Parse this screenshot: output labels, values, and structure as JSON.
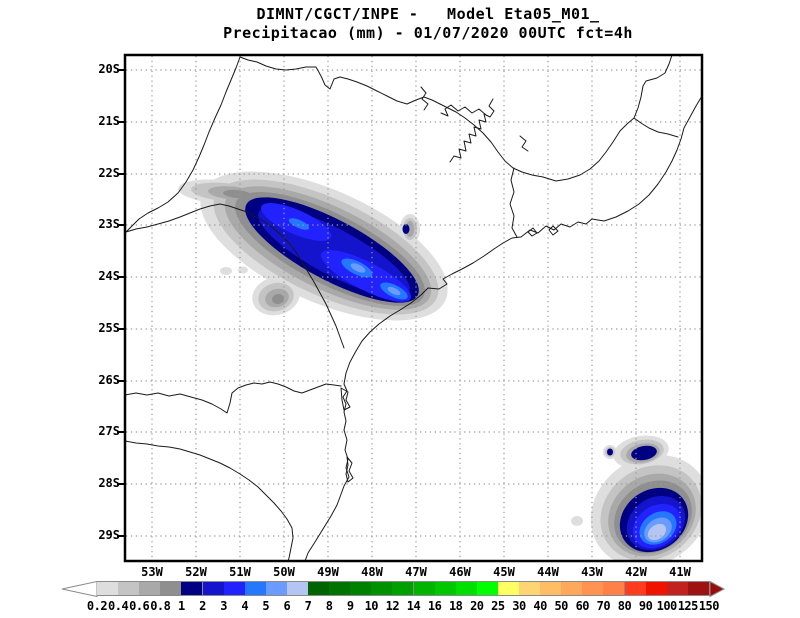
{
  "title": {
    "line1": "DIMNT/CGCT/INPE -   Model Eta05_M01_",
    "line2": "Precipitacao (mm) - 01/07/2020 00UTC fct=4h"
  },
  "map": {
    "lat_labels": [
      "20S",
      "21S",
      "22S",
      "23S",
      "24S",
      "25S",
      "26S",
      "27S",
      "28S",
      "29S"
    ],
    "lon_labels": [
      "53W",
      "52W",
      "51W",
      "50W",
      "49W",
      "48W",
      "47W",
      "46W",
      "45W",
      "44W",
      "43W",
      "42W",
      "41W"
    ],
    "region": "Southeastern Brazil",
    "grid": "dotted, 1 degree spacing"
  },
  "colorbar": {
    "unit": "mm",
    "labels": [
      "0.2",
      "0.4",
      "0.6",
      "0.8",
      "1",
      "2",
      "3",
      "4",
      "5",
      "6",
      "7",
      "8",
      "9",
      "10",
      "12",
      "14",
      "16",
      "18",
      "20",
      "25",
      "30",
      "40",
      "50",
      "60",
      "70",
      "80",
      "90",
      "100",
      "125",
      "150"
    ],
    "segment_colors": [
      "#dedede",
      "#c4c4c4",
      "#a9a9a9",
      "#8f8f8f",
      "#000082",
      "#1414cc",
      "#2222ff",
      "#2478ff",
      "#6b9bff",
      "#b4c5f2",
      "#006400",
      "#007300",
      "#008200",
      "#009100",
      "#00a000",
      "#00b400",
      "#00c800",
      "#00e000",
      "#00ff00",
      "#ffff64",
      "#ffd473",
      "#ffbe66",
      "#ffa85c",
      "#ff9452",
      "#ff8048",
      "#ff3c1e",
      "#f01400",
      "#c32020",
      "#9e1212"
    ],
    "below_min_color": "#ffffff",
    "above_max_color": "#9b0a0a"
  },
  "precip_features": [
    {
      "name": "main-band",
      "desc": "SW-NE oriented rain band over Sao Paulo state, core 2-5 mm",
      "approx": "23S-24.5S, 51W-47.5W"
    },
    {
      "name": "weak-cells",
      "desc": "light (<1 mm) cells west and south of main band",
      "approx": "22.5S-24.5S, 52.5W-50.5W"
    },
    {
      "name": "small-cell",
      "desc": "isolated 1-2 mm dot",
      "approx": "23.1S, 47.4W"
    },
    {
      "name": "coastal-system",
      "desc": "offshore system near Santa Catarina coast, core 5-7 mm",
      "approx": "27.3S-29.5S, 43W-40.7W"
    }
  ]
}
